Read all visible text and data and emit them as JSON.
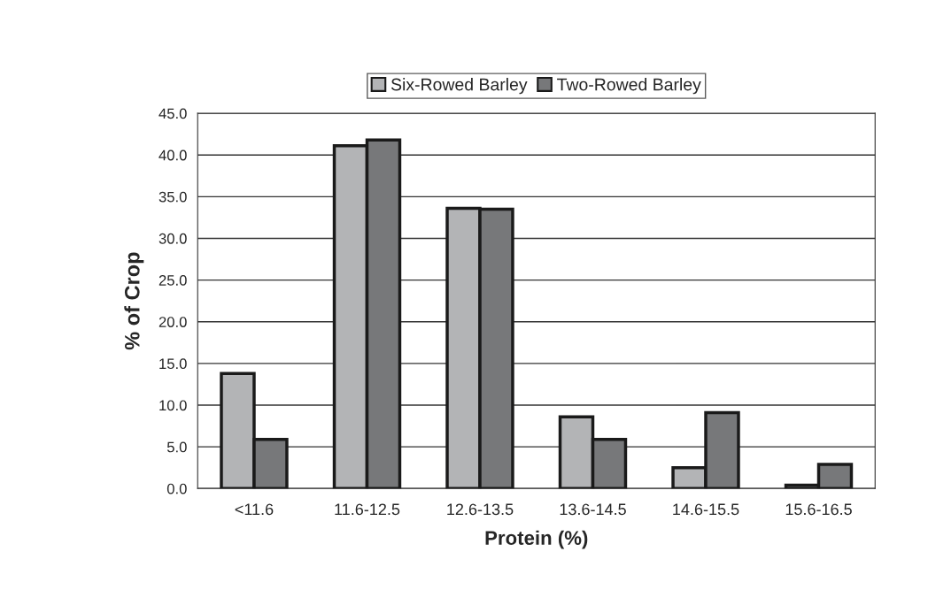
{
  "chart_data": {
    "type": "bar",
    "xlabel": "Protein (%)",
    "ylabel": "% of Crop",
    "categories": [
      "<11.6",
      "11.6-12.5",
      "12.6-13.5",
      "13.6-14.5",
      "14.6-15.5",
      "15.6-16.5"
    ],
    "series": [
      {
        "name": "Six-Rowed Barley",
        "color": "#b3b4b6",
        "values": [
          13.8,
          41.1,
          33.6,
          8.6,
          2.5,
          0.4
        ]
      },
      {
        "name": "Two-Rowed Barley",
        "color": "#77787a",
        "values": [
          5.9,
          41.8,
          33.5,
          5.9,
          9.1,
          2.9
        ]
      }
    ],
    "ylim": [
      0,
      45
    ],
    "yticks": [
      {
        "value": 0,
        "label": "0.0"
      },
      {
        "value": 5,
        "label": "5.0"
      },
      {
        "value": 10,
        "label": "10.0"
      },
      {
        "value": 15,
        "label": "15.0"
      },
      {
        "value": 20,
        "label": "20.0"
      },
      {
        "value": 25,
        "label": "25.0"
      },
      {
        "value": 30,
        "label": "30.0"
      },
      {
        "value": 35,
        "label": "35.0"
      },
      {
        "value": 40,
        "label": "40.0"
      },
      {
        "value": 45,
        "label": "45.0"
      }
    ],
    "grid": "y",
    "legend": "top"
  }
}
